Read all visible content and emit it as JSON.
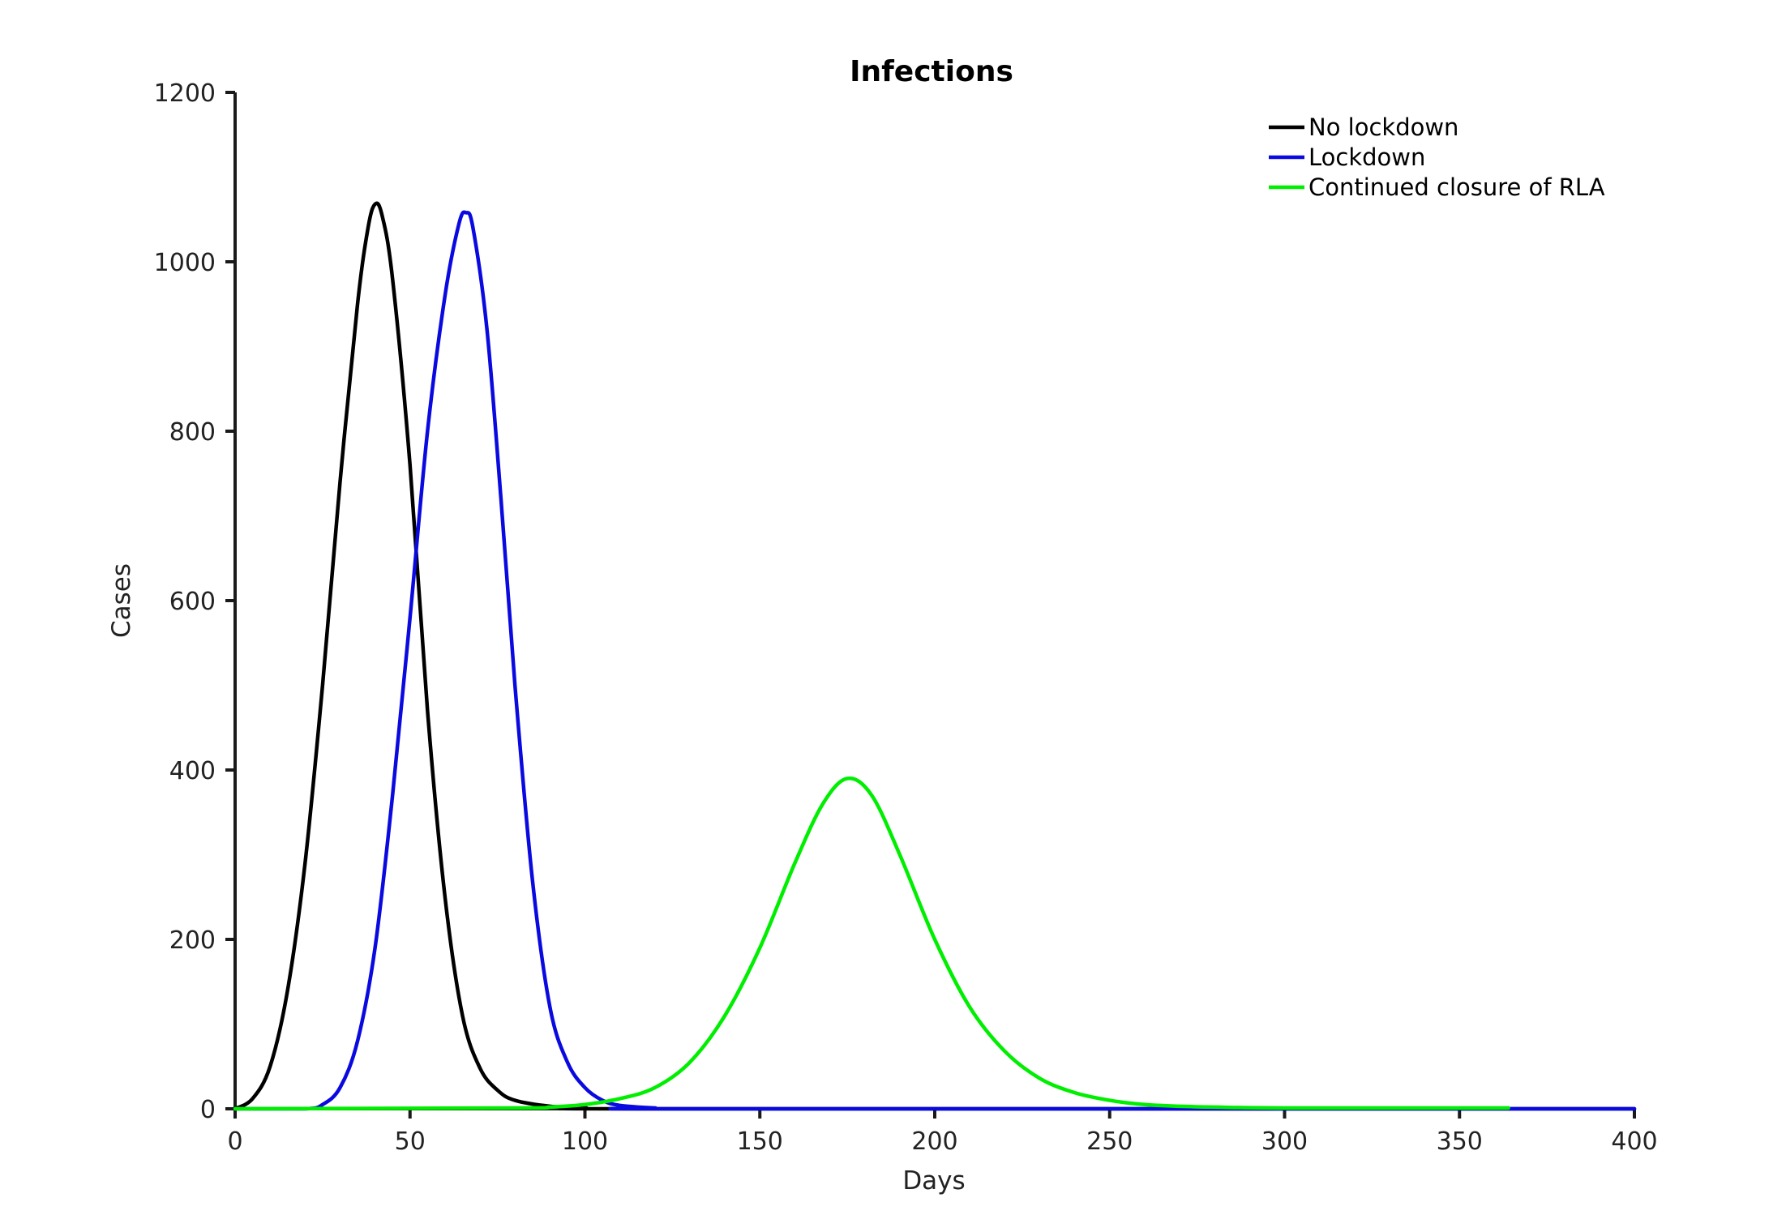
{
  "chart_data": {
    "type": "line",
    "title": "Infections",
    "xlabel": "Days",
    "ylabel": "Cases",
    "xlim": [
      0,
      400
    ],
    "ylim": [
      0,
      1200
    ],
    "xticks": [
      "0",
      "50",
      "100",
      "150",
      "200",
      "250",
      "300",
      "350",
      "400"
    ],
    "yticks": [
      "0",
      "200",
      "400",
      "600",
      "800",
      "1000",
      "1200"
    ],
    "grid": false,
    "legend_position": "top-right",
    "series": [
      {
        "name": "No lockdown",
        "color": "#000000",
        "points": [
          [
            0,
            0
          ],
          [
            5,
            12
          ],
          [
            10,
            50
          ],
          [
            15,
            140
          ],
          [
            20,
            290
          ],
          [
            25,
            500
          ],
          [
            30,
            740
          ],
          [
            35,
            950
          ],
          [
            38,
            1040
          ],
          [
            40,
            1068
          ],
          [
            42,
            1055
          ],
          [
            45,
            980
          ],
          [
            50,
            760
          ],
          [
            55,
            470
          ],
          [
            60,
            250
          ],
          [
            65,
            110
          ],
          [
            70,
            48
          ],
          [
            75,
            22
          ],
          [
            80,
            10
          ],
          [
            90,
            3
          ],
          [
            100,
            1
          ],
          [
            120,
            0
          ],
          [
            400,
            0
          ]
        ]
      },
      {
        "name": "Lockdown",
        "color": "#0a0ae0",
        "points": [
          [
            0,
            0
          ],
          [
            20,
            0
          ],
          [
            25,
            5
          ],
          [
            30,
            25
          ],
          [
            35,
            80
          ],
          [
            40,
            190
          ],
          [
            45,
            370
          ],
          [
            50,
            580
          ],
          [
            55,
            800
          ],
          [
            60,
            960
          ],
          [
            64,
            1045
          ],
          [
            66,
            1058
          ],
          [
            68,
            1040
          ],
          [
            72,
            920
          ],
          [
            76,
            720
          ],
          [
            80,
            500
          ],
          [
            85,
            270
          ],
          [
            90,
            120
          ],
          [
            95,
            55
          ],
          [
            100,
            25
          ],
          [
            105,
            10
          ],
          [
            110,
            4
          ],
          [
            120,
            1
          ],
          [
            130,
            0
          ],
          [
            400,
            0
          ]
        ]
      },
      {
        "name": "Continued closure of RLA",
        "color": "#00ee00",
        "points": [
          [
            0,
            0
          ],
          [
            80,
            1
          ],
          [
            90,
            2
          ],
          [
            100,
            5
          ],
          [
            110,
            12
          ],
          [
            120,
            25
          ],
          [
            130,
            55
          ],
          [
            140,
            110
          ],
          [
            150,
            190
          ],
          [
            160,
            290
          ],
          [
            168,
            360
          ],
          [
            175,
            390
          ],
          [
            182,
            370
          ],
          [
            190,
            300
          ],
          [
            200,
            200
          ],
          [
            210,
            120
          ],
          [
            220,
            68
          ],
          [
            230,
            36
          ],
          [
            240,
            19
          ],
          [
            250,
            10
          ],
          [
            260,
            5
          ],
          [
            270,
            3
          ],
          [
            280,
            2
          ],
          [
            300,
            1
          ],
          [
            364,
            1
          ]
        ]
      }
    ]
  }
}
